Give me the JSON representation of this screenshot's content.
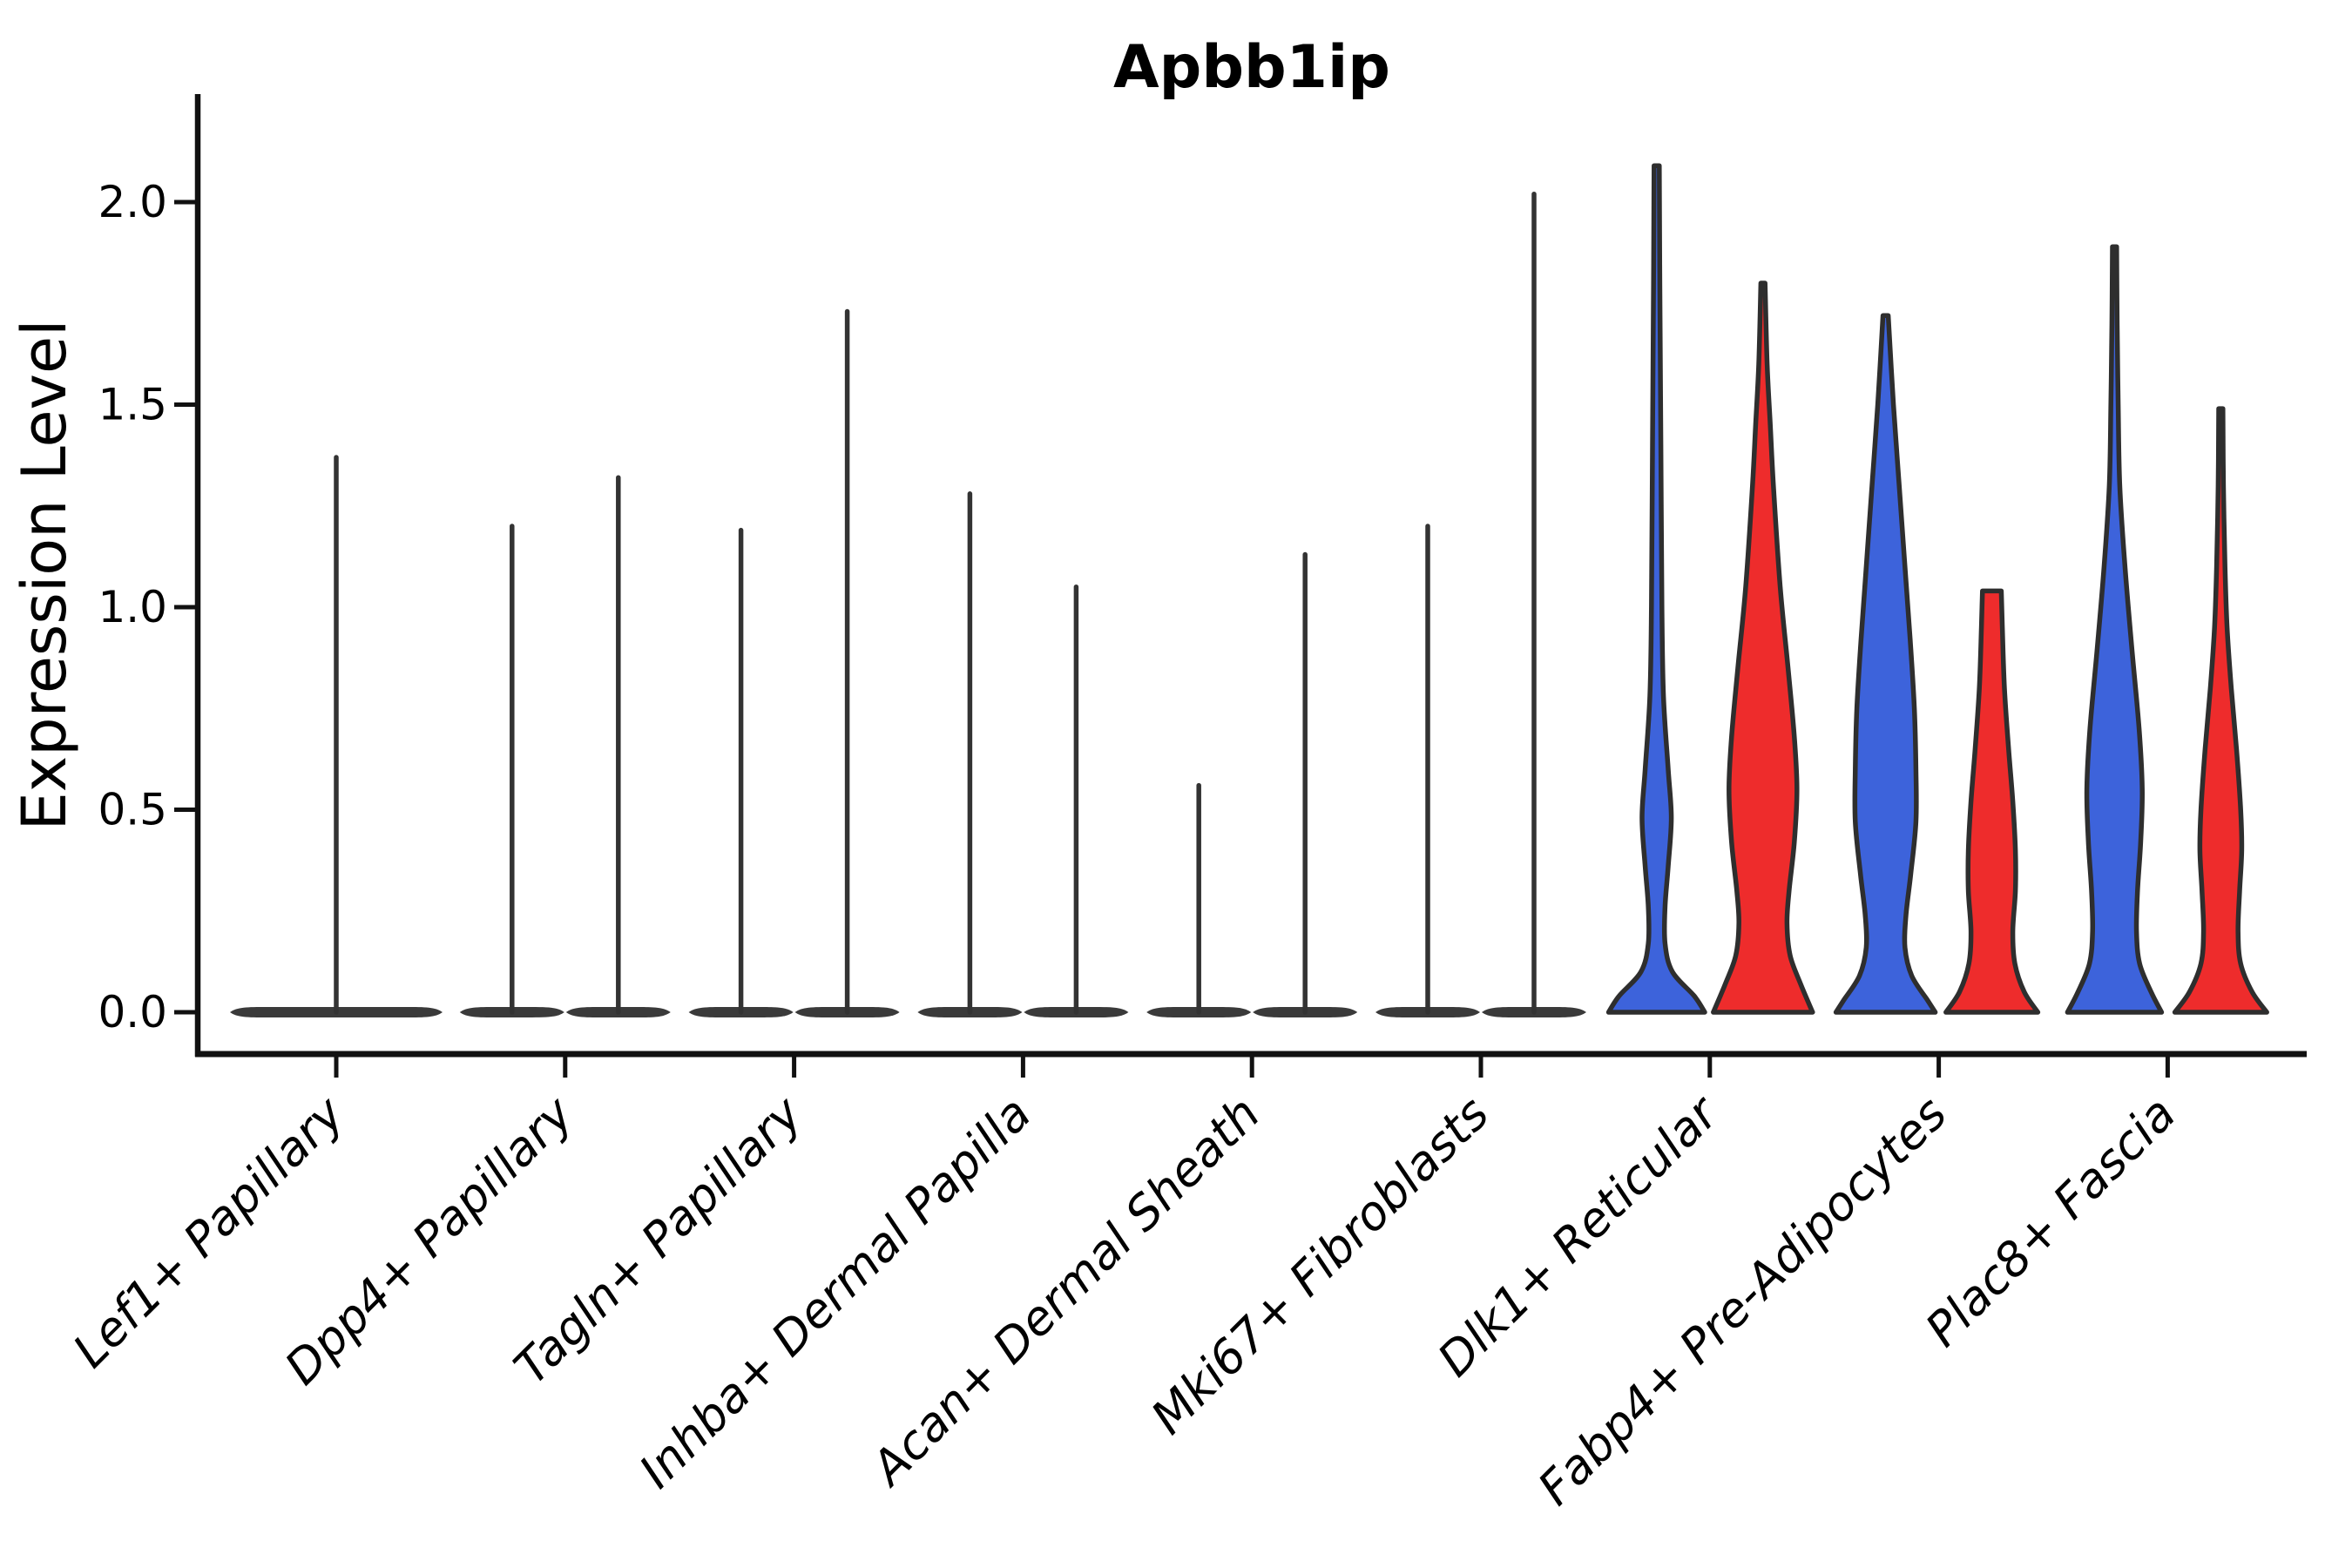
{
  "chart_data": {
    "type": "violin",
    "title": "Apbb1ip",
    "ylabel": "Expression Level",
    "xlabel": "",
    "ylim": [
      0,
      2.26
    ],
    "grid": false,
    "legend": "none",
    "yticks": [
      0.0,
      0.5,
      1.0,
      1.5,
      2.0
    ],
    "ytick_labels": [
      "0.0",
      "0.5",
      "1.0",
      "1.5",
      "2.0"
    ],
    "categories": [
      "Lef1+ Papillary",
      "Dpp4+ Papillary",
      "Tagln+ Papillary",
      "Inhba+ Dermal Papilla",
      "Acan+ Dermal Sheath",
      "Mki67+ Fibroblasts",
      "Dlk1+ Reticular",
      "Fabp4+ Pre-Adipocytes",
      "Plac8+ Fascia"
    ],
    "groups": [
      {
        "name": "group-left",
        "color": "#3D63DB"
      },
      {
        "name": "group-right",
        "color": "#EE2C2C"
      }
    ],
    "edge_color": "#2E2E2E",
    "spike_color": "#333333",
    "base_bar_color": "#3A3A3A",
    "violins": [
      {
        "category": "Lef1+ Papillary",
        "category_index": 0,
        "group": "single",
        "shape": "spike",
        "color": null,
        "max_expression": 1.37
      },
      {
        "category": "Dpp4+ Papillary",
        "category_index": 1,
        "group": "left",
        "shape": "spike",
        "color": null,
        "max_expression": 1.2
      },
      {
        "category": "Dpp4+ Papillary",
        "category_index": 1,
        "group": "right",
        "shape": "spike",
        "color": null,
        "max_expression": 1.32
      },
      {
        "category": "Tagln+ Papillary",
        "category_index": 2,
        "group": "left",
        "shape": "spike",
        "color": null,
        "max_expression": 1.19
      },
      {
        "category": "Tagln+ Papillary",
        "category_index": 2,
        "group": "right",
        "shape": "spike",
        "color": null,
        "max_expression": 1.73
      },
      {
        "category": "Inhba+ Dermal Papilla",
        "category_index": 3,
        "group": "left",
        "shape": "spike",
        "color": null,
        "max_expression": 1.28
      },
      {
        "category": "Inhba+ Dermal Papilla",
        "category_index": 3,
        "group": "right",
        "shape": "spike",
        "color": null,
        "max_expression": 1.05
      },
      {
        "category": "Acan+ Dermal Sheath",
        "category_index": 4,
        "group": "left",
        "shape": "spike",
        "color": null,
        "max_expression": 0.56
      },
      {
        "category": "Acan+ Dermal Sheath",
        "category_index": 4,
        "group": "right",
        "shape": "spike",
        "color": null,
        "max_expression": 1.13
      },
      {
        "category": "Mki67+ Fibroblasts",
        "category_index": 5,
        "group": "left",
        "shape": "spike",
        "color": null,
        "max_expression": 1.2
      },
      {
        "category": "Mki67+ Fibroblasts",
        "category_index": 5,
        "group": "right",
        "shape": "spike",
        "color": null,
        "max_expression": 2.02
      },
      {
        "category": "Dlk1+ Reticular",
        "category_index": 6,
        "group": "left",
        "shape": "density",
        "color": "#3D63DB",
        "max_expression": 2.09,
        "profile": [
          [
            2.09,
            0.05
          ],
          [
            1.8,
            0.06
          ],
          [
            1.4,
            0.08
          ],
          [
            1.0,
            0.1
          ],
          [
            0.78,
            0.13
          ],
          [
            0.6,
            0.22
          ],
          [
            0.48,
            0.28
          ],
          [
            0.36,
            0.22
          ],
          [
            0.26,
            0.16
          ],
          [
            0.17,
            0.16
          ],
          [
            0.1,
            0.3
          ],
          [
            0.04,
            0.72
          ],
          [
            0.0,
            0.92
          ]
        ]
      },
      {
        "category": "Dlk1+ Reticular",
        "category_index": 6,
        "group": "right",
        "shape": "density",
        "color": "#EE2C2C",
        "max_expression": 1.8,
        "profile": [
          [
            1.8,
            0.04
          ],
          [
            1.6,
            0.08
          ],
          [
            1.45,
            0.14
          ],
          [
            1.3,
            0.2
          ],
          [
            1.05,
            0.33
          ],
          [
            0.85,
            0.48
          ],
          [
            0.68,
            0.6
          ],
          [
            0.55,
            0.65
          ],
          [
            0.42,
            0.6
          ],
          [
            0.3,
            0.5
          ],
          [
            0.22,
            0.46
          ],
          [
            0.14,
            0.52
          ],
          [
            0.07,
            0.72
          ],
          [
            0.0,
            0.95
          ]
        ]
      },
      {
        "category": "Fabp4+ Pre-Adipocytes",
        "category_index": 7,
        "group": "left",
        "shape": "density",
        "color": "#3D63DB",
        "max_expression": 1.72,
        "profile": [
          [
            1.72,
            0.05
          ],
          [
            1.5,
            0.15
          ],
          [
            1.3,
            0.26
          ],
          [
            1.1,
            0.37
          ],
          [
            0.92,
            0.47
          ],
          [
            0.75,
            0.55
          ],
          [
            0.6,
            0.58
          ],
          [
            0.47,
            0.58
          ],
          [
            0.34,
            0.48
          ],
          [
            0.24,
            0.39
          ],
          [
            0.16,
            0.37
          ],
          [
            0.09,
            0.5
          ],
          [
            0.03,
            0.8
          ],
          [
            0.0,
            0.95
          ]
        ]
      },
      {
        "category": "Fabp4+ Pre-Adipocytes",
        "category_index": 7,
        "group": "right",
        "shape": "density",
        "color": "#EE2C2C",
        "max_expression": 1.04,
        "blunt_top": true,
        "profile": [
          [
            1.04,
            0.18
          ],
          [
            0.95,
            0.2
          ],
          [
            0.8,
            0.24
          ],
          [
            0.65,
            0.32
          ],
          [
            0.52,
            0.4
          ],
          [
            0.4,
            0.45
          ],
          [
            0.3,
            0.45
          ],
          [
            0.2,
            0.4
          ],
          [
            0.12,
            0.44
          ],
          [
            0.05,
            0.62
          ],
          [
            0.0,
            0.88
          ]
        ]
      },
      {
        "category": "Plac8+ Fascia",
        "category_index": 8,
        "group": "left",
        "shape": "density",
        "color": "#3D63DB",
        "max_expression": 1.89,
        "profile": [
          [
            1.89,
            0.04
          ],
          [
            1.7,
            0.05
          ],
          [
            1.5,
            0.07
          ],
          [
            1.3,
            0.1
          ],
          [
            1.1,
            0.2
          ],
          [
            0.9,
            0.33
          ],
          [
            0.7,
            0.47
          ],
          [
            0.55,
            0.53
          ],
          [
            0.42,
            0.5
          ],
          [
            0.3,
            0.44
          ],
          [
            0.2,
            0.42
          ],
          [
            0.12,
            0.48
          ],
          [
            0.05,
            0.7
          ],
          [
            0.0,
            0.9
          ]
        ]
      },
      {
        "category": "Plac8+ Fascia",
        "category_index": 8,
        "group": "right",
        "shape": "density",
        "color": "#EE2C2C",
        "max_expression": 1.49,
        "profile": [
          [
            1.49,
            0.04
          ],
          [
            1.3,
            0.05
          ],
          [
            1.1,
            0.08
          ],
          [
            0.95,
            0.12
          ],
          [
            0.8,
            0.2
          ],
          [
            0.65,
            0.3
          ],
          [
            0.5,
            0.38
          ],
          [
            0.4,
            0.4
          ],
          [
            0.3,
            0.36
          ],
          [
            0.2,
            0.33
          ],
          [
            0.12,
            0.38
          ],
          [
            0.05,
            0.6
          ],
          [
            0.0,
            0.88
          ]
        ]
      }
    ]
  }
}
